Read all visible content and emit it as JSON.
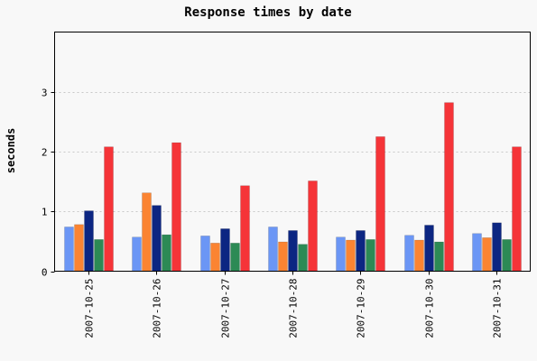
{
  "chart_data": {
    "type": "bar",
    "title": "Response times by date",
    "xlabel": "",
    "ylabel": "seconds",
    "ylim": [
      0,
      4
    ],
    "yticks": [
      0,
      1,
      2,
      3
    ],
    "grid": true,
    "categories": [
      "2007-10-25",
      "2007-10-26",
      "2007-10-27",
      "2007-10-28",
      "2007-10-29",
      "2007-10-30",
      "2007-10-31"
    ],
    "series": [
      {
        "color": "#6b96f5",
        "values": [
          0.74,
          0.57,
          0.59,
          0.74,
          0.57,
          0.6,
          0.63
        ]
      },
      {
        "color": "#fb8432",
        "values": [
          0.78,
          1.31,
          0.47,
          0.49,
          0.52,
          0.52,
          0.56
        ]
      },
      {
        "color": "#0c2682",
        "values": [
          1.01,
          1.1,
          0.71,
          0.68,
          0.68,
          0.77,
          0.81
        ]
      },
      {
        "color": "#2c8a55",
        "values": [
          0.53,
          0.61,
          0.47,
          0.45,
          0.53,
          0.49,
          0.53
        ]
      },
      {
        "color": "#f53438",
        "values": [
          2.08,
          2.15,
          1.43,
          1.51,
          2.25,
          2.82,
          2.08
        ]
      }
    ]
  }
}
